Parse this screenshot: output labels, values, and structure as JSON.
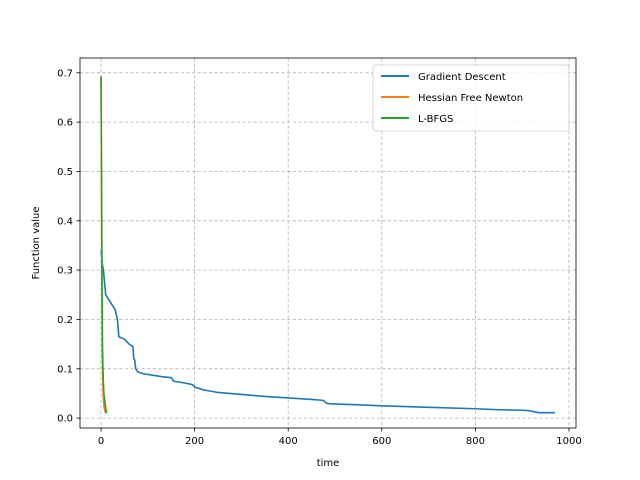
{
  "chart_data": {
    "type": "line",
    "title": "",
    "xlabel": "time",
    "ylabel": "Function value",
    "xlim": [
      -45,
      1015
    ],
    "ylim": [
      -0.02,
      0.73
    ],
    "xticks": [
      0,
      200,
      400,
      600,
      800,
      1000
    ],
    "yticks": [
      0.0,
      0.1,
      0.2,
      0.3,
      0.4,
      0.5,
      0.6,
      0.7
    ],
    "xtick_labels": [
      "0",
      "200",
      "400",
      "600",
      "800",
      "1000"
    ],
    "ytick_labels": [
      "0.0",
      "0.1",
      "0.2",
      "0.3",
      "0.4",
      "0.5",
      "0.6",
      "0.7"
    ],
    "grid": true,
    "legend_position": "top-right",
    "series": [
      {
        "name": "Gradient Descent",
        "color": "#1f77b4",
        "x": [
          0,
          1,
          3,
          5,
          7,
          10,
          20,
          30,
          35,
          38,
          50,
          60,
          68,
          70,
          72,
          74,
          78,
          90,
          110,
          130,
          150,
          155,
          160,
          180,
          195,
          200,
          220,
          250,
          300,
          350,
          400,
          450,
          475,
          482,
          490,
          550,
          600,
          700,
          800,
          850,
          900,
          915,
          925,
          935,
          960,
          970
        ],
        "y": [
          0.34,
          0.33,
          0.31,
          0.3,
          0.28,
          0.25,
          0.235,
          0.22,
          0.2,
          0.165,
          0.16,
          0.15,
          0.145,
          0.12,
          0.118,
          0.1,
          0.094,
          0.09,
          0.087,
          0.084,
          0.082,
          0.075,
          0.074,
          0.071,
          0.068,
          0.063,
          0.057,
          0.052,
          0.048,
          0.044,
          0.041,
          0.038,
          0.036,
          0.03,
          0.029,
          0.027,
          0.025,
          0.022,
          0.019,
          0.017,
          0.016,
          0.015,
          0.013,
          0.011,
          0.011,
          0.011
        ]
      },
      {
        "name": "Hessian Free Newton",
        "color": "#ff7f0e",
        "x": [
          0,
          1,
          2,
          3,
          4,
          5,
          6,
          8,
          10
        ],
        "y": [
          0.693,
          0.45,
          0.22,
          0.12,
          0.07,
          0.04,
          0.025,
          0.015,
          0.01
        ]
      },
      {
        "name": "L-BFGS",
        "color": "#2ca02c",
        "x": [
          0,
          0.5,
          1,
          1.5,
          2,
          2.5,
          3,
          4,
          5,
          6,
          8,
          10,
          12
        ],
        "y": [
          0.693,
          0.6,
          0.5,
          0.4,
          0.3,
          0.22,
          0.15,
          0.1,
          0.07,
          0.05,
          0.035,
          0.02,
          0.01
        ]
      }
    ]
  }
}
